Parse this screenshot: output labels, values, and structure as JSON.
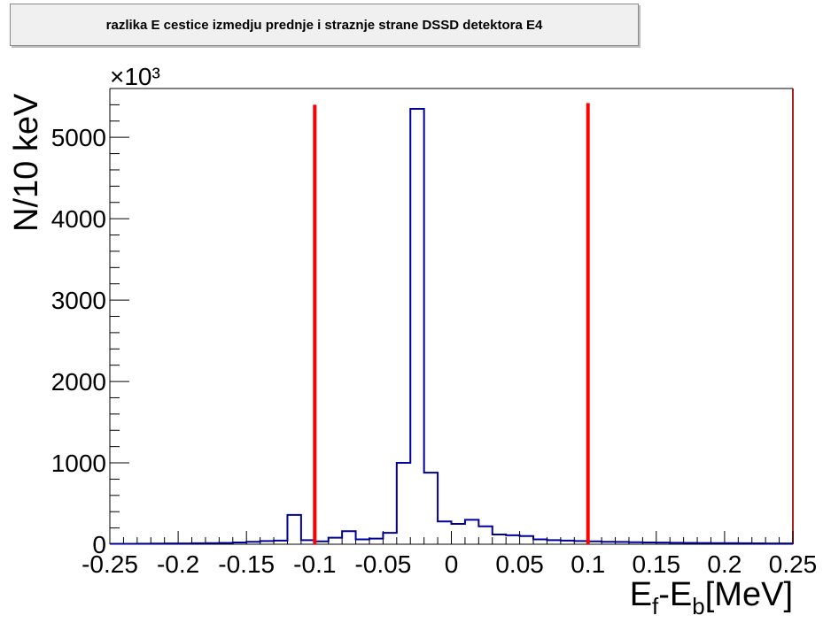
{
  "chart_data": {
    "type": "histogram",
    "title": "razlika E cestice izmedju prednje i straznje strane DSSD detektora E4",
    "xlabel": "E_f-E_b[MeV]",
    "ylabel": "N/10 keV",
    "y_multiplier": "×10³",
    "xlim": [
      -0.25,
      0.25
    ],
    "ylim": [
      0,
      5600
    ],
    "x_ticks": [
      -0.25,
      -0.2,
      -0.15,
      -0.1,
      -0.05,
      0,
      0.05,
      0.1,
      0.15,
      0.2,
      0.25
    ],
    "x_tick_labels": [
      "-0.25",
      "-0.2",
      "-0.15",
      "-0.1",
      "-0.05",
      "0",
      "0.05",
      "0.1",
      "0.15",
      "0.2",
      "0.25"
    ],
    "y_ticks": [
      0,
      1000,
      2000,
      3000,
      4000,
      5000
    ],
    "y_tick_labels": [
      "0",
      "1000",
      "2000",
      "3000",
      "4000",
      "5000"
    ],
    "bin_width": 0.01,
    "bin_edges_start": -0.25,
    "values": [
      5,
      6,
      7,
      8,
      9,
      10,
      12,
      14,
      16,
      22,
      30,
      40,
      45,
      360,
      50,
      35,
      80,
      160,
      60,
      70,
      140,
      1000,
      5350,
      880,
      280,
      250,
      300,
      220,
      120,
      110,
      100,
      60,
      50,
      45,
      40,
      35,
      30,
      28,
      25,
      22,
      20,
      18,
      16,
      15,
      14,
      13,
      12,
      11,
      10,
      9
    ],
    "vertical_lines": [
      {
        "x": -0.1,
        "y_top": 5400,
        "color": "#ff0000"
      },
      {
        "x": 0.1,
        "y_top": 5420,
        "color": "#ff0000"
      }
    ],
    "histogram_color": "#000099",
    "frame_right_color": "#aa1f1f",
    "grid": false
  }
}
